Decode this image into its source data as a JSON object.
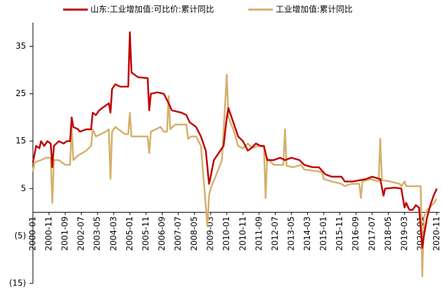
{
  "chart_data": {
    "type": "line",
    "legend": "top",
    "negative_tick_color": "#c00000",
    "xlim": [
      "2000-01",
      "2020-11"
    ],
    "xticks": [
      "2000-01",
      "2000-11",
      "2001-09",
      "2002-07",
      "2003-05",
      "2004-03",
      "2005-01",
      "2005-11",
      "2006-09",
      "2007-07",
      "2008-05",
      "2009-03",
      "2010-01",
      "2010-11",
      "2011-09",
      "2012-07",
      "2013-05",
      "2014-03",
      "2015-01",
      "2015-11",
      "2016-09",
      "2017-07",
      "2018-05",
      "2019-03",
      "2020-01",
      "2020-11"
    ],
    "ylim": [
      -15,
      40
    ],
    "yticks": [
      {
        "value": -15,
        "label": "(15)"
      },
      {
        "value": -5,
        "label": "(5)"
      },
      5,
      15,
      25,
      35
    ],
    "series": [
      {
        "name": "山东:工业增加值:可比价:累计同比",
        "color": "#c00000",
        "x": [
          "2000-01",
          "2000-03",
          "2000-05",
          "2000-06",
          "2000-08",
          "2000-10",
          "2000-12",
          "2001-01",
          "2001-02",
          "2001-05",
          "2001-08",
          "2001-10",
          "2001-12",
          "2002-01",
          "2002-02",
          "2002-05",
          "2002-06",
          "2002-10",
          "2003-01",
          "2003-02",
          "2003-04",
          "2003-06",
          "2003-10",
          "2003-12",
          "2004-01",
          "2004-02",
          "2004-04",
          "2004-07",
          "2004-12",
          "2005-01",
          "2005-02",
          "2005-04",
          "2005-06",
          "2005-12",
          "2006-01",
          "2006-02",
          "2006-06",
          "2006-10",
          "2007-01",
          "2007-03",
          "2007-09",
          "2007-12",
          "2008-02",
          "2008-06",
          "2008-09",
          "2008-12",
          "2009-02",
          "2009-03",
          "2009-05",
          "2009-08",
          "2009-11",
          "2010-01",
          "2010-02",
          "2010-04",
          "2010-08",
          "2010-11",
          "2011-02",
          "2011-04",
          "2011-07",
          "2011-10",
          "2011-12",
          "2012-02",
          "2012-06",
          "2012-10",
          "2013-01",
          "2013-05",
          "2013-10",
          "2014-01",
          "2014-06",
          "2014-10",
          "2015-02",
          "2015-06",
          "2015-12",
          "2016-02",
          "2016-07",
          "2016-12",
          "2017-03",
          "2017-07",
          "2017-12",
          "2018-02",
          "2018-03",
          "2018-09",
          "2019-01",
          "2019-03",
          "2019-04",
          "2019-06",
          "2019-08",
          "2019-10",
          "2019-12",
          "2020-02",
          "2020-03",
          "2020-05",
          "2020-07",
          "2020-09",
          "2020-11"
        ],
        "values": [
          10.5,
          14,
          13.5,
          15,
          14,
          15,
          14.5,
          9.5,
          14,
          15,
          14.5,
          15,
          15,
          20,
          18,
          17.5,
          17,
          17.5,
          17.5,
          21,
          20.5,
          21.5,
          22.5,
          23,
          21,
          26,
          27,
          26.5,
          26.5,
          38,
          29.5,
          29,
          28.5,
          28.3,
          21.5,
          25,
          25.3,
          25,
          23,
          21.5,
          21,
          20.5,
          19,
          18,
          16,
          13,
          6,
          7.5,
          11,
          12.5,
          14,
          20,
          22,
          20,
          16,
          15,
          13,
          13.5,
          14.5,
          14,
          14,
          11,
          11,
          11.5,
          11,
          11.5,
          11,
          10,
          9.5,
          9.5,
          8,
          7.5,
          7.5,
          6.5,
          6.5,
          6.8,
          7,
          7.5,
          7,
          3.5,
          5,
          5.2,
          5,
          1,
          2,
          0.5,
          0.5,
          1.5,
          1,
          -7.5,
          -5,
          -1,
          1.5,
          3.5,
          5
        ]
      },
      {
        "name": "工业增加值:累计同比",
        "color": "#d4b06a",
        "x": [
          "2000-01",
          "2000-02",
          "2000-06",
          "2000-09",
          "2000-12",
          "2001-01",
          "2001-02",
          "2001-05",
          "2001-09",
          "2001-12",
          "2002-01",
          "2002-02",
          "2002-05",
          "2002-10",
          "2003-01",
          "2003-02",
          "2003-04",
          "2003-10",
          "2003-12",
          "2004-01",
          "2004-02",
          "2004-04",
          "2004-10",
          "2004-12",
          "2005-01",
          "2005-02",
          "2005-06",
          "2005-12",
          "2006-01",
          "2006-02",
          "2006-05",
          "2006-08",
          "2006-10",
          "2006-12",
          "2007-01",
          "2007-02",
          "2007-05",
          "2007-12",
          "2008-01",
          "2008-03",
          "2008-06",
          "2008-09",
          "2008-11",
          "2009-01",
          "2009-02",
          "2009-03",
          "2009-06",
          "2009-10",
          "2010-01",
          "2010-02",
          "2010-05",
          "2010-08",
          "2010-11",
          "2011-02",
          "2011-05",
          "2011-08",
          "2011-12",
          "2012-01",
          "2012-02",
          "2012-06",
          "2012-10",
          "2012-12",
          "2013-01",
          "2013-02",
          "2013-06",
          "2013-11",
          "2014-01",
          "2014-06",
          "2014-12",
          "2015-01",
          "2015-06",
          "2015-12",
          "2016-02",
          "2016-06",
          "2016-11",
          "2016-12",
          "2017-01",
          "2017-06",
          "2017-11",
          "2017-12",
          "2018-01",
          "2018-06",
          "2018-12",
          "2019-01",
          "2019-03",
          "2019-04",
          "2019-12",
          "2020-01",
          "2020-02",
          "2020-03",
          "2020-05",
          "2020-08",
          "2020-11"
        ],
        "values": [
          8.5,
          10.5,
          11,
          11.5,
          11.5,
          2,
          11,
          11,
          10,
          10,
          18,
          11,
          12,
          13,
          14,
          17.5,
          16,
          17,
          17.5,
          7,
          17,
          18,
          16.5,
          16.5,
          21,
          16,
          16,
          16,
          12.5,
          17,
          17.5,
          18,
          17,
          17,
          24.5,
          17.5,
          18.5,
          18.5,
          15.5,
          16,
          16,
          14,
          5.5,
          -3,
          3.5,
          5,
          7.5,
          11,
          29,
          20,
          17.5,
          14,
          13.5,
          14.5,
          13.5,
          14,
          13.8,
          3,
          11.5,
          10,
          10,
          10,
          17.5,
          9.8,
          9.5,
          10,
          9,
          8.8,
          8.5,
          7,
          6.5,
          6,
          5.5,
          6,
          6,
          3,
          6.5,
          7,
          6.5,
          15.5,
          6.8,
          6.5,
          6,
          5.5,
          6.5,
          5.5,
          5.5,
          5.5,
          -13.5,
          -1,
          0.5,
          1.5,
          2.8
        ]
      }
    ]
  }
}
